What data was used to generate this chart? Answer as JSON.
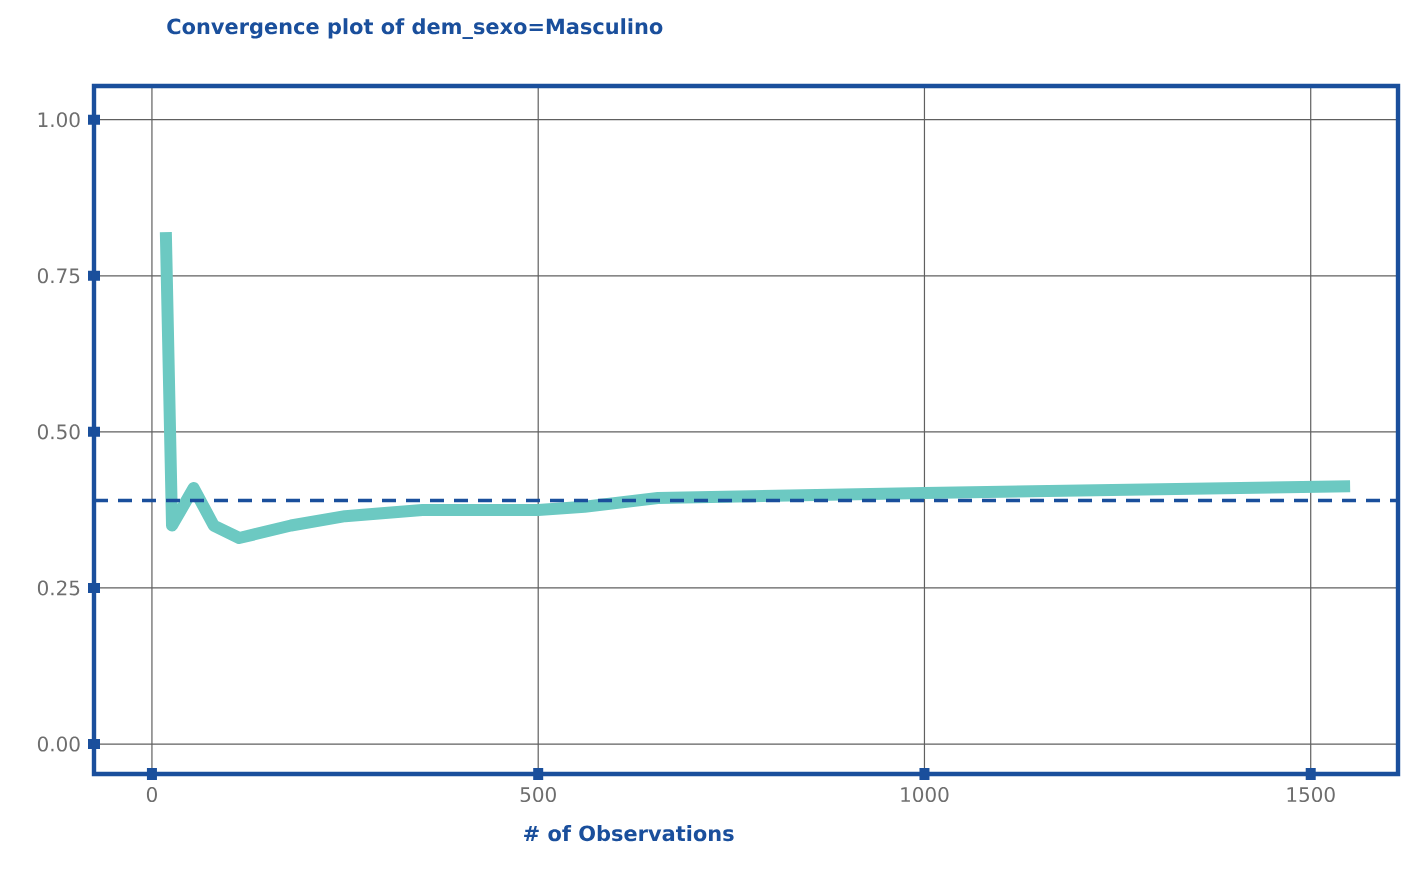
{
  "chart_data": {
    "type": "line",
    "title": "Convergence plot of dem_sexo=Masculino",
    "xlabel": "# of Observations",
    "xlim": [
      -75,
      1613
    ],
    "ylim": [
      -0.048,
      1.054
    ],
    "xticks": [
      0,
      500,
      1000,
      1500
    ],
    "yticks": [
      {
        "value": 0,
        "label": "0.00"
      },
      {
        "value": 0.25,
        "label": "0.25"
      },
      {
        "value": 0.5,
        "label": "0.50"
      },
      {
        "value": 0.75,
        "label": "0.75"
      },
      {
        "value": 1,
        "label": "1.00"
      }
    ],
    "grid": true,
    "series": [
      {
        "color": "#6cc9c2",
        "x": [
          18,
          26,
          54,
          80,
          113,
          180,
          250,
          350,
          500,
          560,
          655,
          1000,
          1551
        ],
        "values": [
          0.82,
          0.35,
          0.41,
          0.35,
          0.33,
          0.35,
          0.365,
          0.375,
          0.375,
          0.38,
          0.394,
          0.402,
          0.413
        ]
      }
    ],
    "ref_lines": [
      {
        "axis": "y",
        "value": 0.39,
        "color": "#1a4f9c",
        "line_style": "dashed"
      }
    ]
  }
}
